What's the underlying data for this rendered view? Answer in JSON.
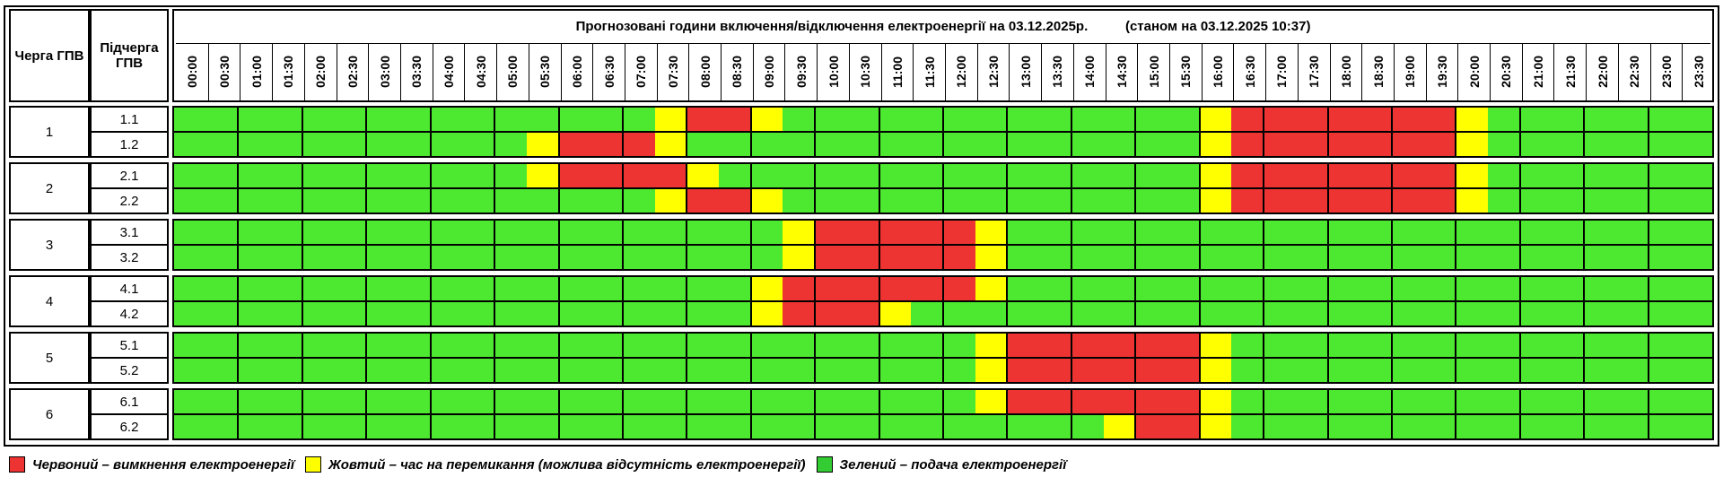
{
  "header": {
    "queue_label": "Черга ГПВ",
    "subqueue_label": "Підчерга ГПВ",
    "title": "Прогнозовані години включення/відключення електроенергії на 03.12.2025р.",
    "status": "(станом на 03.12.2025 10:37)"
  },
  "times": [
    "00:00",
    "00:30",
    "01:00",
    "01:30",
    "02:00",
    "02:30",
    "03:00",
    "03:30",
    "04:00",
    "04:30",
    "05:00",
    "05:30",
    "06:00",
    "06:30",
    "07:00",
    "07:30",
    "08:00",
    "08:30",
    "09:00",
    "09:30",
    "10:00",
    "10:30",
    "11:00",
    "11:30",
    "12:00",
    "12:30",
    "13:00",
    "13:30",
    "14:00",
    "14:30",
    "15:00",
    "15:30",
    "16:00",
    "16:30",
    "17:00",
    "17:30",
    "18:00",
    "18:30",
    "19:00",
    "19:30",
    "20:00",
    "20:30",
    "21:00",
    "21:30",
    "22:00",
    "22:30",
    "23:00",
    "23:30"
  ],
  "colors": {
    "R": "#ee3333",
    "Y": "#ffff00",
    "G": "#4de830"
  },
  "queues": [
    {
      "queue": "1",
      "subqueues": [
        {
          "label": "1.1",
          "slots": [
            "G",
            "G",
            "G",
            "G",
            "G",
            "G",
            "G",
            "G",
            "G",
            "G",
            "G",
            "G",
            "G",
            "G",
            "G",
            "Y",
            "R",
            "R",
            "Y",
            "G",
            "G",
            "G",
            "G",
            "G",
            "G",
            "G",
            "G",
            "G",
            "G",
            "G",
            "G",
            "G",
            "Y",
            "R",
            "R",
            "R",
            "R",
            "R",
            "R",
            "R",
            "Y",
            "G",
            "G",
            "G",
            "G",
            "G",
            "G",
            "G"
          ]
        },
        {
          "label": "1.2",
          "slots": [
            "G",
            "G",
            "G",
            "G",
            "G",
            "G",
            "G",
            "G",
            "G",
            "G",
            "G",
            "Y",
            "R",
            "R",
            "R",
            "Y",
            "G",
            "G",
            "G",
            "G",
            "G",
            "G",
            "G",
            "G",
            "G",
            "G",
            "G",
            "G",
            "G",
            "G",
            "G",
            "G",
            "Y",
            "R",
            "R",
            "R",
            "R",
            "R",
            "R",
            "R",
            "Y",
            "G",
            "G",
            "G",
            "G",
            "G",
            "G",
            "G"
          ]
        }
      ]
    },
    {
      "queue": "2",
      "subqueues": [
        {
          "label": "2.1",
          "slots": [
            "G",
            "G",
            "G",
            "G",
            "G",
            "G",
            "G",
            "G",
            "G",
            "G",
            "G",
            "Y",
            "R",
            "R",
            "R",
            "R",
            "Y",
            "G",
            "G",
            "G",
            "G",
            "G",
            "G",
            "G",
            "G",
            "G",
            "G",
            "G",
            "G",
            "G",
            "G",
            "G",
            "Y",
            "R",
            "R",
            "R",
            "R",
            "R",
            "R",
            "R",
            "Y",
            "G",
            "G",
            "G",
            "G",
            "G",
            "G",
            "G"
          ]
        },
        {
          "label": "2.2",
          "slots": [
            "G",
            "G",
            "G",
            "G",
            "G",
            "G",
            "G",
            "G",
            "G",
            "G",
            "G",
            "G",
            "G",
            "G",
            "G",
            "Y",
            "R",
            "R",
            "Y",
            "G",
            "G",
            "G",
            "G",
            "G",
            "G",
            "G",
            "G",
            "G",
            "G",
            "G",
            "G",
            "G",
            "Y",
            "R",
            "R",
            "R",
            "R",
            "R",
            "R",
            "R",
            "Y",
            "G",
            "G",
            "G",
            "G",
            "G",
            "G",
            "G"
          ]
        }
      ]
    },
    {
      "queue": "3",
      "subqueues": [
        {
          "label": "3.1",
          "slots": [
            "G",
            "G",
            "G",
            "G",
            "G",
            "G",
            "G",
            "G",
            "G",
            "G",
            "G",
            "G",
            "G",
            "G",
            "G",
            "G",
            "G",
            "G",
            "G",
            "Y",
            "R",
            "R",
            "R",
            "R",
            "R",
            "Y",
            "G",
            "G",
            "G",
            "G",
            "G",
            "G",
            "G",
            "G",
            "G",
            "G",
            "G",
            "G",
            "G",
            "G",
            "G",
            "G",
            "G",
            "G",
            "G",
            "G",
            "G",
            "G"
          ]
        },
        {
          "label": "3.2",
          "slots": [
            "G",
            "G",
            "G",
            "G",
            "G",
            "G",
            "G",
            "G",
            "G",
            "G",
            "G",
            "G",
            "G",
            "G",
            "G",
            "G",
            "G",
            "G",
            "G",
            "Y",
            "R",
            "R",
            "R",
            "R",
            "R",
            "Y",
            "G",
            "G",
            "G",
            "G",
            "G",
            "G",
            "G",
            "G",
            "G",
            "G",
            "G",
            "G",
            "G",
            "G",
            "G",
            "G",
            "G",
            "G",
            "G",
            "G",
            "G",
            "G"
          ]
        }
      ]
    },
    {
      "queue": "4",
      "subqueues": [
        {
          "label": "4.1",
          "slots": [
            "G",
            "G",
            "G",
            "G",
            "G",
            "G",
            "G",
            "G",
            "G",
            "G",
            "G",
            "G",
            "G",
            "G",
            "G",
            "G",
            "G",
            "G",
            "Y",
            "R",
            "R",
            "R",
            "R",
            "R",
            "R",
            "Y",
            "G",
            "G",
            "G",
            "G",
            "G",
            "G",
            "G",
            "G",
            "G",
            "G",
            "G",
            "G",
            "G",
            "G",
            "G",
            "G",
            "G",
            "G",
            "G",
            "G",
            "G",
            "G"
          ]
        },
        {
          "label": "4.2",
          "slots": [
            "G",
            "G",
            "G",
            "G",
            "G",
            "G",
            "G",
            "G",
            "G",
            "G",
            "G",
            "G",
            "G",
            "G",
            "G",
            "G",
            "G",
            "G",
            "Y",
            "R",
            "R",
            "R",
            "Y",
            "G",
            "G",
            "G",
            "G",
            "G",
            "G",
            "G",
            "G",
            "G",
            "G",
            "G",
            "G",
            "G",
            "G",
            "G",
            "G",
            "G",
            "G",
            "G",
            "G",
            "G",
            "G",
            "G",
            "G",
            "G"
          ]
        }
      ]
    },
    {
      "queue": "5",
      "subqueues": [
        {
          "label": "5.1",
          "slots": [
            "G",
            "G",
            "G",
            "G",
            "G",
            "G",
            "G",
            "G",
            "G",
            "G",
            "G",
            "G",
            "G",
            "G",
            "G",
            "G",
            "G",
            "G",
            "G",
            "G",
            "G",
            "G",
            "G",
            "G",
            "G",
            "Y",
            "R",
            "R",
            "R",
            "R",
            "R",
            "R",
            "Y",
            "G",
            "G",
            "G",
            "G",
            "G",
            "G",
            "G",
            "G",
            "G",
            "G",
            "G",
            "G",
            "G",
            "G",
            "G"
          ]
        },
        {
          "label": "5.2",
          "slots": [
            "G",
            "G",
            "G",
            "G",
            "G",
            "G",
            "G",
            "G",
            "G",
            "G",
            "G",
            "G",
            "G",
            "G",
            "G",
            "G",
            "G",
            "G",
            "G",
            "G",
            "G",
            "G",
            "G",
            "G",
            "G",
            "Y",
            "R",
            "R",
            "R",
            "R",
            "R",
            "R",
            "Y",
            "G",
            "G",
            "G",
            "G",
            "G",
            "G",
            "G",
            "G",
            "G",
            "G",
            "G",
            "G",
            "G",
            "G",
            "G"
          ]
        }
      ]
    },
    {
      "queue": "6",
      "subqueues": [
        {
          "label": "6.1",
          "slots": [
            "G",
            "G",
            "G",
            "G",
            "G",
            "G",
            "G",
            "G",
            "G",
            "G",
            "G",
            "G",
            "G",
            "G",
            "G",
            "G",
            "G",
            "G",
            "G",
            "G",
            "G",
            "G",
            "G",
            "G",
            "G",
            "Y",
            "R",
            "R",
            "R",
            "R",
            "R",
            "R",
            "Y",
            "G",
            "G",
            "G",
            "G",
            "G",
            "G",
            "G",
            "G",
            "G",
            "G",
            "G",
            "G",
            "G",
            "G",
            "G"
          ]
        },
        {
          "label": "6.2",
          "slots": [
            "G",
            "G",
            "G",
            "G",
            "G",
            "G",
            "G",
            "G",
            "G",
            "G",
            "G",
            "G",
            "G",
            "G",
            "G",
            "G",
            "G",
            "G",
            "G",
            "G",
            "G",
            "G",
            "G",
            "G",
            "G",
            "G",
            "G",
            "G",
            "G",
            "Y",
            "R",
            "R",
            "Y",
            "G",
            "G",
            "G",
            "G",
            "G",
            "G",
            "G",
            "G",
            "G",
            "G",
            "G",
            "G",
            "G",
            "G",
            "G"
          ]
        }
      ]
    }
  ],
  "legend": [
    {
      "color": "#ee3333",
      "label": "Червоний – вимкнення електроенергії"
    },
    {
      "color": "#ffff00",
      "label": "Жовтий – час на перемикання (можлива відсутність електроенергії)"
    },
    {
      "color": "#33cc33",
      "label": "Зелений – подача електроенергії"
    }
  ]
}
